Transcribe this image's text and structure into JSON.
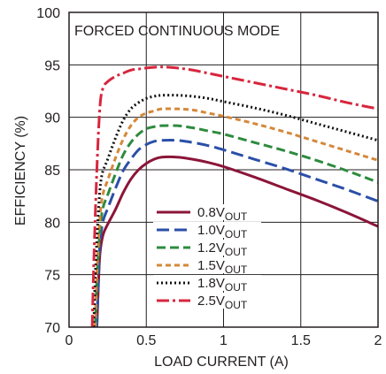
{
  "chart_data": {
    "type": "line",
    "title": "FORCED CONTINUOUS MODE",
    "xlabel": "LOAD CURRENT (A)",
    "ylabel": "EFFICIENCY (%)",
    "xlim": [
      0,
      2
    ],
    "ylim": [
      70,
      100
    ],
    "xticks": [
      0,
      0.5,
      1,
      1.5,
      2
    ],
    "xtick_labels": [
      "0",
      "0.5",
      "1",
      "1.5",
      "2"
    ],
    "yticks": [
      70,
      75,
      80,
      85,
      90,
      95,
      100
    ],
    "ytick_labels": [
      "70",
      "75",
      "80",
      "85",
      "90",
      "95",
      "100"
    ],
    "grid": true,
    "legend_position": "lower-center",
    "series": [
      {
        "name": "0.8V",
        "subscript": "OUT",
        "color": "#8b1538",
        "dash": "solid",
        "points": [
          [
            0.18,
            70
          ],
          [
            0.19,
            74
          ],
          [
            0.2,
            77
          ],
          [
            0.22,
            78.8
          ],
          [
            0.25,
            79.8
          ],
          [
            0.3,
            81.2
          ],
          [
            0.35,
            82.8
          ],
          [
            0.4,
            84.1
          ],
          [
            0.45,
            85
          ],
          [
            0.5,
            85.6
          ],
          [
            0.55,
            86
          ],
          [
            0.6,
            86.2
          ],
          [
            0.7,
            86.2
          ],
          [
            0.8,
            86
          ],
          [
            0.9,
            85.7
          ],
          [
            1.0,
            85.3
          ],
          [
            1.2,
            84.3
          ],
          [
            1.4,
            83.2
          ],
          [
            1.6,
            82.1
          ],
          [
            1.8,
            80.9
          ],
          [
            2.0,
            79.6
          ]
        ]
      },
      {
        "name": "1.0V",
        "subscript": "OUT",
        "color": "#2b4fa8",
        "dash": "long-dash",
        "points": [
          [
            0.18,
            70
          ],
          [
            0.19,
            74.5
          ],
          [
            0.2,
            78
          ],
          [
            0.22,
            80.1
          ],
          [
            0.25,
            81.3
          ],
          [
            0.3,
            83.2
          ],
          [
            0.35,
            84.9
          ],
          [
            0.4,
            86
          ],
          [
            0.45,
            86.9
          ],
          [
            0.5,
            87.4
          ],
          [
            0.55,
            87.7
          ],
          [
            0.6,
            87.8
          ],
          [
            0.7,
            87.8
          ],
          [
            0.8,
            87.6
          ],
          [
            0.9,
            87.3
          ],
          [
            1.0,
            86.9
          ],
          [
            1.2,
            86
          ],
          [
            1.4,
            85.1
          ],
          [
            1.6,
            84.1
          ],
          [
            1.8,
            83.1
          ],
          [
            2.0,
            82
          ]
        ]
      },
      {
        "name": "1.2V",
        "subscript": "OUT",
        "color": "#2e8b3e",
        "dash": "dash",
        "points": [
          [
            0.17,
            70
          ],
          [
            0.18,
            74.5
          ],
          [
            0.2,
            79.2
          ],
          [
            0.22,
            81.4
          ],
          [
            0.25,
            82.6
          ],
          [
            0.3,
            84.6
          ],
          [
            0.35,
            86.4
          ],
          [
            0.4,
            87.6
          ],
          [
            0.45,
            88.4
          ],
          [
            0.5,
            88.9
          ],
          [
            0.55,
            89.1
          ],
          [
            0.6,
            89.2
          ],
          [
            0.7,
            89.2
          ],
          [
            0.8,
            89
          ],
          [
            0.9,
            88.7
          ],
          [
            1.0,
            88.4
          ],
          [
            1.2,
            87.6
          ],
          [
            1.4,
            86.8
          ],
          [
            1.6,
            85.9
          ],
          [
            1.8,
            84.9
          ],
          [
            2.0,
            83.8
          ]
        ]
      },
      {
        "name": "1.5V",
        "subscript": "OUT",
        "color": "#d4883a",
        "dash": "short-dash",
        "points": [
          [
            0.17,
            70
          ],
          [
            0.18,
            75
          ],
          [
            0.2,
            80.5
          ],
          [
            0.22,
            82.7
          ],
          [
            0.25,
            84
          ],
          [
            0.3,
            86.1
          ],
          [
            0.35,
            87.9
          ],
          [
            0.4,
            89.2
          ],
          [
            0.45,
            90
          ],
          [
            0.5,
            90.4
          ],
          [
            0.55,
            90.6
          ],
          [
            0.6,
            90.8
          ],
          [
            0.7,
            90.8
          ],
          [
            0.8,
            90.7
          ],
          [
            0.9,
            90.4
          ],
          [
            1.0,
            90.1
          ],
          [
            1.2,
            89.4
          ],
          [
            1.4,
            88.6
          ],
          [
            1.6,
            87.7
          ],
          [
            1.8,
            86.8
          ],
          [
            2.0,
            85.9
          ]
        ]
      },
      {
        "name": "1.8V",
        "subscript": "OUT",
        "color": "#111111",
        "dash": "dotted",
        "points": [
          [
            0.16,
            70
          ],
          [
            0.17,
            75
          ],
          [
            0.19,
            81
          ],
          [
            0.21,
            84.3
          ],
          [
            0.25,
            86
          ],
          [
            0.3,
            88
          ],
          [
            0.35,
            89.7
          ],
          [
            0.4,
            90.8
          ],
          [
            0.45,
            91.4
          ],
          [
            0.5,
            91.8
          ],
          [
            0.55,
            92
          ],
          [
            0.6,
            92.1
          ],
          [
            0.7,
            92.1
          ],
          [
            0.8,
            92
          ],
          [
            0.9,
            91.8
          ],
          [
            1.0,
            91.5
          ],
          [
            1.2,
            90.9
          ],
          [
            1.4,
            90.2
          ],
          [
            1.6,
            89.4
          ],
          [
            1.8,
            88.6
          ],
          [
            2.0,
            87.8
          ]
        ]
      },
      {
        "name": "2.5V",
        "subscript": "OUT",
        "color": "#d7263d",
        "dash": "dash-dot",
        "points": [
          [
            0.15,
            70
          ],
          [
            0.16,
            76
          ],
          [
            0.18,
            85
          ],
          [
            0.2,
            91
          ],
          [
            0.22,
            92.8
          ],
          [
            0.25,
            93.4
          ],
          [
            0.3,
            93.9
          ],
          [
            0.35,
            94.2
          ],
          [
            0.4,
            94.5
          ],
          [
            0.45,
            94.6
          ],
          [
            0.5,
            94.7
          ],
          [
            0.6,
            94.8
          ],
          [
            0.7,
            94.7
          ],
          [
            0.8,
            94.5
          ],
          [
            0.9,
            94.2
          ],
          [
            1.0,
            93.9
          ],
          [
            1.2,
            93.3
          ],
          [
            1.4,
            92.7
          ],
          [
            1.6,
            92.1
          ],
          [
            1.8,
            91.4
          ],
          [
            2.0,
            90.8
          ]
        ]
      }
    ]
  }
}
